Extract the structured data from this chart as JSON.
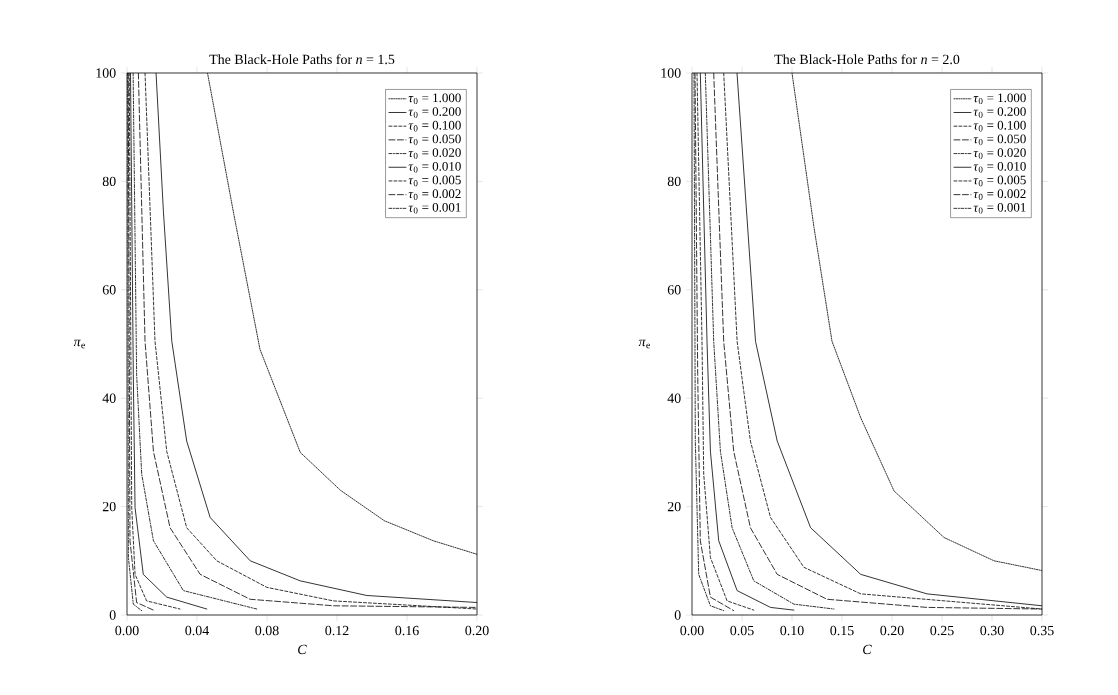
{
  "chart_data": [
    {
      "type": "line",
      "title": "The Black-Hole Paths for *n* = 1.5",
      "xlabel": "*C*",
      "ylabel": "*π*$_{e}$",
      "xlim": [
        0,
        0.2
      ],
      "ylim": [
        0,
        100
      ],
      "xticks": [
        {
          "value": 0,
          "label": "0.00"
        },
        {
          "value": 0.04,
          "label": "0.04"
        },
        {
          "value": 0.08,
          "label": "0.08"
        },
        {
          "value": 0.12,
          "label": "0.12"
        },
        {
          "value": 0.16,
          "label": "0.16"
        },
        {
          "value": 0.2,
          "label": "0.20"
        }
      ],
      "yticks": [
        0,
        20,
        40,
        60,
        80,
        100
      ],
      "legend": "top right",
      "grid": false,
      "series": [
        {
          "name": "*τ*$_{0}$ = 1.000",
          "color": "#000000",
          "line_style": "dotted",
          "x": [
            0.046,
            0.061,
            0.076,
            0.099,
            0.122,
            0.147,
            0.175,
            0.2
          ],
          "values": [
            100,
            74,
            49,
            30,
            23,
            17.4,
            13.7,
            11.2
          ]
        },
        {
          "name": "*τ*$_{0}$ = 0.200",
          "color": "#000000",
          "line_style": "solid",
          "x": [
            0.0166,
            0.0208,
            0.0256,
            0.0341,
            0.0475,
            0.0704,
            0.099,
            0.137,
            0.2
          ],
          "values": [
            100,
            74.5,
            50.5,
            32.1,
            18,
            10,
            6.3,
            3.6,
            2.3
          ]
        },
        {
          "name": "*τ*$_{0}$ = 0.100",
          "color": "#000000",
          "line_style": "dashed",
          "x": [
            0.0103,
            0.016,
            0.0227,
            0.0341,
            0.0513,
            0.0799,
            0.118,
            0.2
          ],
          "values": [
            100,
            50.5,
            30.2,
            16.1,
            10,
            5.1,
            2.6,
            1.1
          ]
        },
        {
          "name": "*τ*$_{0}$ = 0.050",
          "color": "#000000",
          "line_style": "long dashed",
          "x": [
            0.0065,
            0.0103,
            0.0151,
            0.0246,
            0.0418,
            0.0704,
            0.118,
            0.2
          ],
          "values": [
            100,
            50.5,
            30.2,
            16.1,
            7.5,
            2.9,
            1.7,
            1.4
          ]
        },
        {
          "name": "*τ*$_{0}$ = 0.020",
          "color": "#000000",
          "line_style": "dashdot",
          "x": [
            0.0035,
            0.0055,
            0.0084,
            0.0151,
            0.0322,
            0.0742
          ],
          "values": [
            100,
            44.4,
            26,
            13.7,
            4.5,
            1.1
          ]
        },
        {
          "name": "*τ*$_{0}$ = 0.010",
          "color": "#000000",
          "line_style": "solid",
          "x": [
            0.002,
            0.0036,
            0.0046,
            0.0093,
            0.0227,
            0.0456
          ],
          "values": [
            100,
            44.4,
            19.8,
            7.5,
            3.3,
            1.1
          ]
        },
        {
          "name": "*τ*$_{0}$ = 0.005",
          "color": "#000000",
          "line_style": "dashed",
          "x": [
            0.0013,
            0.0027,
            0.0046,
            0.0112,
            0.0303
          ],
          "values": [
            100,
            19.8,
            7.5,
            2.6,
            1.1
          ]
        },
        {
          "name": "*τ*$_{0}$ = 0.002",
          "color": "#000000",
          "line_style": "long dashed",
          "x": [
            0.0007,
            0.0017,
            0.0055,
            0.0151
          ],
          "values": [
            100,
            13.7,
            2.3,
            0.9
          ]
        },
        {
          "name": "*τ*$_{0}$ = 0.001",
          "color": "#000000",
          "line_style": "dashdot",
          "x": [
            0.0004,
            0.0008,
            0.0036,
            0.0084
          ],
          "values": [
            100,
            10.6,
            2,
            0.8
          ]
        }
      ]
    },
    {
      "type": "line",
      "title": "The Black-Hole Paths for *n* = 2.0",
      "xlabel": "*C*",
      "ylabel": "*π*$_{e}$",
      "xlim": [
        0,
        0.35
      ],
      "ylim": [
        0,
        100
      ],
      "xticks": [
        {
          "value": 0,
          "label": "0.00"
        },
        {
          "value": 0.05,
          "label": "0.05"
        },
        {
          "value": 0.1,
          "label": "0.10"
        },
        {
          "value": 0.15,
          "label": "0.15"
        },
        {
          "value": 0.2,
          "label": "0.20"
        },
        {
          "value": 0.25,
          "label": "0.25"
        },
        {
          "value": 0.3,
          "label": "0.30"
        },
        {
          "value": 0.35,
          "label": "0.35"
        }
      ],
      "yticks": [
        0,
        20,
        40,
        60,
        80,
        100
      ],
      "legend": "top right",
      "grid": false,
      "series": [
        {
          "name": "*τ*$_{0}$ = 1.000",
          "color": "#000000",
          "line_style": "dotted",
          "x": [
            0.1,
            0.122,
            0.14,
            0.1687,
            0.202,
            0.252,
            0.302,
            0.35
          ],
          "values": [
            100,
            71.5,
            50.5,
            36.4,
            22.9,
            14.3,
            10,
            8.2
          ]
        },
        {
          "name": "*τ*$_{0}$ = 0.200",
          "color": "#000000",
          "line_style": "solid",
          "x": [
            0.045,
            0.0635,
            0.0852,
            0.1186,
            0.1687,
            0.235,
            0.35
          ],
          "values": [
            100,
            50.5,
            32.1,
            16.1,
            7.5,
            3.9,
            1.7
          ]
        },
        {
          "name": "*τ*$_{0}$ = 0.100",
          "color": "#000000",
          "line_style": "dashed",
          "x": [
            0.0317,
            0.0451,
            0.0584,
            0.0785,
            0.1119,
            0.1687,
            0.35
          ],
          "values": [
            100,
            50.5,
            32.1,
            18,
            8.8,
            3.9,
            1.1
          ]
        },
        {
          "name": "*τ*$_{0}$ = 0.050",
          "color": "#000000",
          "line_style": "long dashed",
          "x": [
            0.0217,
            0.0317,
            0.0417,
            0.0584,
            0.0852,
            0.135,
            0.235,
            0.35
          ],
          "values": [
            100,
            50.5,
            30.2,
            16.1,
            7.5,
            2.9,
            1.4,
            1.1
          ]
        },
        {
          "name": "*τ*$_{0}$ = 0.020",
          "color": "#000000",
          "line_style": "dashdot",
          "x": [
            0.0133,
            0.0217,
            0.0284,
            0.0401,
            0.0618,
            0.1019,
            0.142
          ],
          "values": [
            100,
            50.5,
            30.2,
            16.1,
            6.3,
            2,
            1.1
          ]
        },
        {
          "name": "*τ*$_{0}$ = 0.010",
          "color": "#000000",
          "line_style": "solid",
          "x": [
            0.0083,
            0.015,
            0.0184,
            0.0267,
            0.0451,
            0.0785,
            0.1019
          ],
          "values": [
            100,
            50.5,
            30.2,
            13.7,
            4.5,
            1.4,
            0.9
          ]
        },
        {
          "name": "*τ*$_{0}$ = 0.005",
          "color": "#000000",
          "line_style": "dashed",
          "x": [
            0.005,
            0.01,
            0.0117,
            0.0184,
            0.0351,
            0.0618
          ],
          "values": [
            100,
            50.5,
            26,
            10.6,
            2.6,
            0.9
          ]
        },
        {
          "name": "*τ*$_{0}$ = 0.002",
          "color": "#000000",
          "line_style": "long dashed",
          "x": [
            0.003,
            0.0057,
            0.0083,
            0.0184,
            0.0417
          ],
          "values": [
            100,
            44.4,
            13.7,
            3.3,
            0.8
          ]
        },
        {
          "name": "*τ*$_{0}$ = 0.001",
          "color": "#000000",
          "line_style": "dashdot",
          "x": [
            0.002,
            0.0033,
            0.0067,
            0.0184,
            0.0317
          ],
          "values": [
            100,
            32.1,
            7.5,
            1.7,
            0.8
          ]
        }
      ]
    }
  ]
}
